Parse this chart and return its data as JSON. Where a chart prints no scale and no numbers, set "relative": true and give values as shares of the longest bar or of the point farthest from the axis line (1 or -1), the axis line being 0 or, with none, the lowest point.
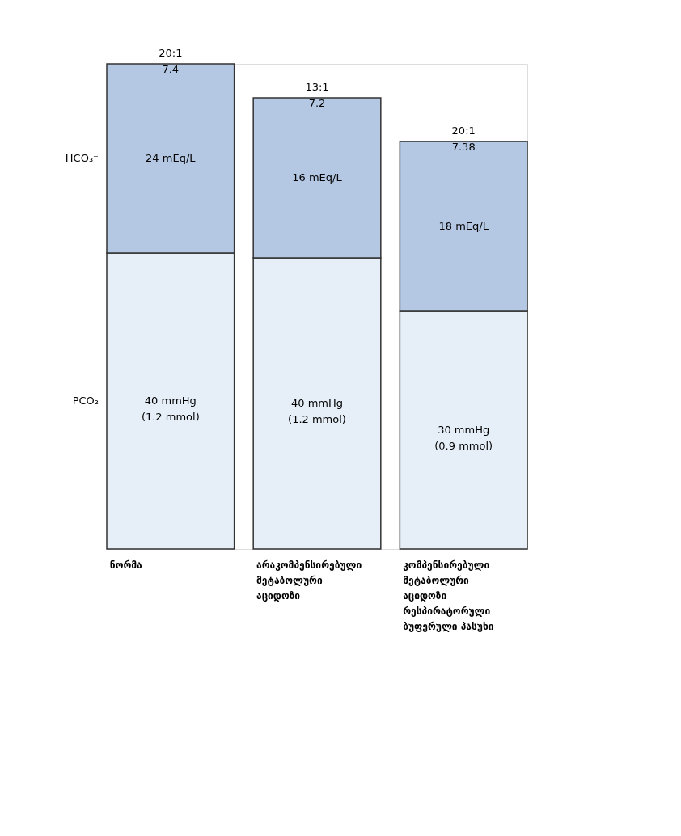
{
  "chart_data": {
    "type": "bar",
    "stacked": true,
    "relative": true,
    "legend": false,
    "categories": [
      "ნორმა",
      "არაკომპენსირებული\nმეტაბოლური\nაციდოზი",
      "კომპენსირებული\nმეტაბოლური\nაციდოზი\nრესპირატორული\nბუფერული პასუხი"
    ],
    "series": [
      {
        "name": "PCO₂",
        "color": "#e6eff8",
        "values": [
          0.61,
          0.6,
          0.49
        ]
      },
      {
        "name": "HCO₃⁻",
        "color": "#b4c8e4",
        "values": [
          0.39,
          0.33,
          0.35
        ]
      }
    ],
    "annotations": [
      "20:1\n7.4",
      "24 mEq/L",
      "40 mmHg\n(1.2 mmol)",
      "13:1\n7.2",
      "16 mEq/L",
      "40 mmHg\n(1.2 mmol)",
      "20:1\n7.38",
      "18 mEq/L",
      "30 mmHg\n(0.9 mmol)"
    ]
  }
}
